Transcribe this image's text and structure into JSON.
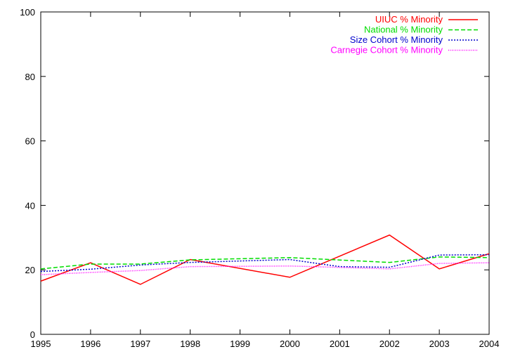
{
  "chart_data": {
    "type": "line",
    "x": [
      1995,
      1996,
      1997,
      1998,
      1999,
      2000,
      2001,
      2002,
      2003,
      2004
    ],
    "xlim": [
      1995,
      2004
    ],
    "ylim": [
      0,
      100
    ],
    "xticks": [
      "1995",
      "1996",
      "1997",
      "1998",
      "1999",
      "2000",
      "2001",
      "2002",
      "2003",
      "2004"
    ],
    "yticks": [
      "0",
      "20",
      "40",
      "60",
      "80",
      "100"
    ],
    "grid": false,
    "legend_position": "top-right",
    "series": [
      {
        "name": "UIUC % Minority",
        "color": "#ff0000",
        "dash": "solid",
        "points": [
          [
            1995,
            16.5
          ],
          [
            1996,
            22.2
          ],
          [
            1997,
            15.5
          ],
          [
            1998,
            23.2
          ],
          [
            2000,
            17.7
          ],
          [
            2002,
            30.8
          ],
          [
            2003,
            20.3
          ],
          [
            2004,
            25.0
          ]
        ]
      },
      {
        "name": "National % Minority",
        "color": "#00dd00",
        "dash": "dashed",
        "points": [
          [
            1995,
            20.3
          ],
          [
            1996,
            21.8
          ],
          [
            1997,
            21.8
          ],
          [
            1998,
            23.1
          ],
          [
            2000,
            23.8
          ],
          [
            2002,
            22.3
          ],
          [
            2003,
            24.0
          ],
          [
            2004,
            23.8
          ]
        ]
      },
      {
        "name": "Size Cohort % Minority",
        "color": "#0000cc",
        "dash": "dotted",
        "points": [
          [
            1995,
            19.5
          ],
          [
            1996,
            20.2
          ],
          [
            1997,
            21.5
          ],
          [
            1998,
            22.3
          ],
          [
            2000,
            23.2
          ],
          [
            2001,
            21.0
          ],
          [
            2002,
            20.8
          ],
          [
            2003,
            24.6
          ],
          [
            2004,
            24.7
          ]
        ]
      },
      {
        "name": "Carnegie Cohort % Minority",
        "color": "#ff00ff",
        "dash": "fine-dotted",
        "points": [
          [
            1995,
            18.5
          ],
          [
            1996,
            19.2
          ],
          [
            1997,
            19.8
          ],
          [
            1998,
            21.0
          ],
          [
            2000,
            21.2
          ],
          [
            2002,
            20.3
          ],
          [
            2003,
            22.0
          ],
          [
            2004,
            22.2
          ]
        ]
      }
    ]
  }
}
